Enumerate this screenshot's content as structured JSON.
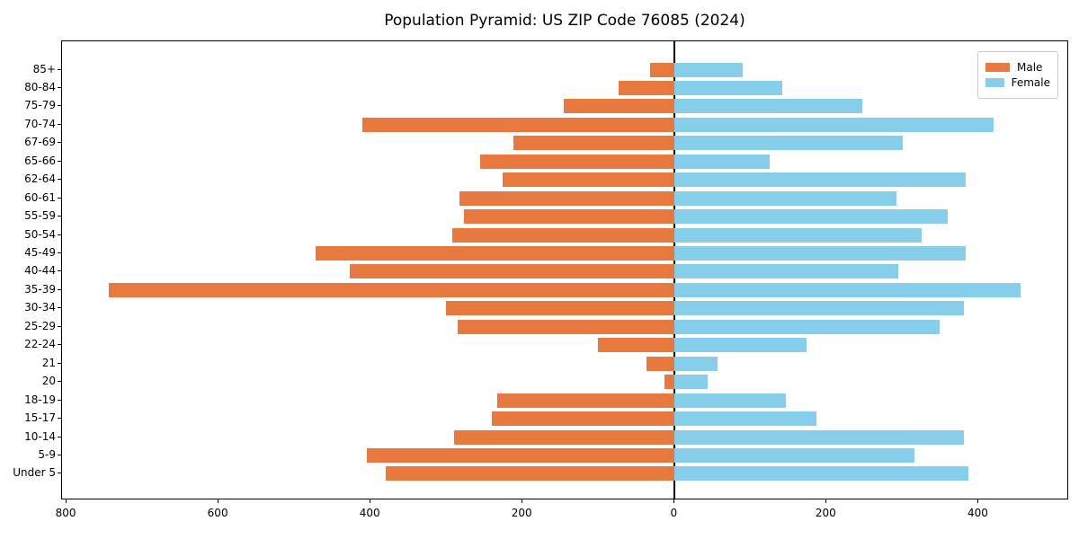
{
  "title": "Population Pyramid: US ZIP Code 76085 (2024)",
  "chart_data": {
    "type": "bar",
    "orientation": "horizontal-pyramid",
    "title": "Population Pyramid: US ZIP Code 76085 (2024)",
    "categories": [
      "85+",
      "80-84",
      "75-79",
      "70-74",
      "67-69",
      "65-66",
      "62-64",
      "60-61",
      "55-59",
      "50-54",
      "45-49",
      "40-44",
      "35-39",
      "30-34",
      "25-29",
      "22-24",
      "21",
      "20",
      "18-19",
      "15-17",
      "10-14",
      "5-9",
      "Under 5"
    ],
    "series": [
      {
        "name": "Male",
        "side": "left",
        "color": "#e8793e",
        "values": [
          32,
          74,
          146,
          411,
          212,
          256,
          226,
          283,
          277,
          292,
          472,
          427,
          744,
          301,
          285,
          101,
          37,
          13,
          233,
          240,
          290,
          405,
          380
        ]
      },
      {
        "name": "Female",
        "side": "right",
        "color": "#87ceeb",
        "values": [
          90,
          142,
          247,
          420,
          300,
          125,
          383,
          292,
          359,
          325,
          383,
          294,
          455,
          381,
          349,
          174,
          57,
          43,
          146,
          186,
          381,
          315,
          387
        ]
      }
    ],
    "xlabel": "",
    "ylabel": "",
    "xlim": [
      -806,
      519
    ],
    "xticks": {
      "values": [
        -800,
        -600,
        -400,
        -200,
        0,
        200,
        400
      ],
      "labels": [
        "800",
        "600",
        "400",
        "200",
        "0",
        "200",
        "400"
      ]
    },
    "grid": false,
    "center_line": true,
    "legend_position": "upper right",
    "axis_color": "#000000",
    "background_color": "#ffffff"
  }
}
